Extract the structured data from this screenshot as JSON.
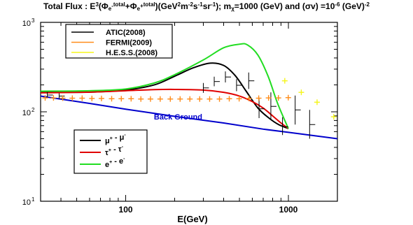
{
  "title": {
    "prefix": "Total Flux : E",
    "e_exp": "3",
    "open": "(Φ",
    "sub1": "e",
    "sub1_sup": "-",
    "sup1": "total",
    "plus": "+Φ",
    "sub2": "e",
    "sub2_sup": "+",
    "sup2": "total",
    "units_a": ")(GeV",
    "units_a_exp": "2",
    "units_b": "m",
    "units_b_exp": "-2",
    "units_c": "s",
    "units_c_exp": "-1",
    "units_d": "sr",
    "units_d_exp": "-1",
    "units_end": "); m",
    "mass_sub": "χ",
    "mass_text": "=1000 (GeV) and  (σv)  =10",
    "sv_exp": "-6",
    "tail": " (GeV)",
    "tail_exp": "-2"
  },
  "chart_data": {
    "type": "line",
    "xscale": "log",
    "yscale": "log",
    "xlim": [
      30,
      2000
    ],
    "ylim": [
      10,
      1000
    ],
    "xlabel": "E(GeV)",
    "ylabel": "",
    "x_ticks": [
      {
        "value": 100,
        "label": "100"
      },
      {
        "value": 1000,
        "label": "1000"
      }
    ],
    "y_ticks": [
      {
        "value": 10,
        "label": "10",
        "exp": "1"
      },
      {
        "value": 100,
        "label": "10",
        "exp": "2"
      },
      {
        "value": 1000,
        "label": "10",
        "exp": "3"
      }
    ],
    "annotations": [
      {
        "text": "Back Ground",
        "x": 210,
        "y": 82,
        "color": "#0000cc"
      }
    ],
    "data_legend": {
      "placement": "top-left",
      "entries": [
        {
          "label": "ATIC(2008)",
          "color": "#000000"
        },
        {
          "label": "FERMI(2009)",
          "color": "#ff8c1a"
        },
        {
          "label": "H.E.S.S.(2008)",
          "color": "#f5f51a"
        }
      ]
    },
    "model_legend": {
      "placement": "bottom-left",
      "entries": [
        {
          "base": "μ",
          "sup1": "+",
          "sep": " - ",
          "base2": "μ",
          "sup2": "-",
          "color": "#000000"
        },
        {
          "base": "τ",
          "sup1": "+",
          "sep": " - ",
          "base2": "τ",
          "sup2": "-",
          "color": "#e00000"
        },
        {
          "base": "e",
          "sup1": "+",
          "sep": " - ",
          "base2": "e",
          "sup2": "-",
          "color": "#22dd22"
        }
      ]
    },
    "series": [
      {
        "name": "Back Ground",
        "color": "#0000cc",
        "x": [
          30,
          60,
          100,
          200,
          400,
          700,
          1000,
          2000
        ],
        "y": [
          150,
          124,
          107,
          89,
          75,
          64,
          59,
          50
        ]
      },
      {
        "name": "μ+ - μ-",
        "color": "#000000",
        "x": [
          30,
          60,
          100,
          150,
          200,
          260,
          330,
          400,
          470,
          550,
          650,
          760,
          870,
          1000
        ],
        "y": [
          165,
          166,
          175,
          200,
          250,
          310,
          350,
          330,
          255,
          170,
          110,
          85,
          72,
          65
        ]
      },
      {
        "name": "τ+ - τ-",
        "color": "#e00000",
        "x": [
          30,
          60,
          100,
          150,
          200,
          300,
          400,
          500,
          600,
          700,
          800,
          900,
          1000
        ],
        "y": [
          163,
          166,
          172,
          177,
          178,
          175,
          165,
          150,
          130,
          110,
          90,
          75,
          65
        ]
      },
      {
        "name": "e+ - e-",
        "color": "#22dd22",
        "x": [
          30,
          60,
          100,
          150,
          200,
          300,
          400,
          500,
          560,
          650,
          750,
          850,
          950,
          1000
        ],
        "y": [
          170,
          172,
          180,
          210,
          260,
          380,
          520,
          570,
          560,
          430,
          250,
          130,
          80,
          65
        ]
      }
    ],
    "data_points": [
      {
        "name": "ATIC(2008)",
        "color": "#000000",
        "marker": "error-cross",
        "points": [
          {
            "x": 33,
            "y": 154,
            "lo": 143,
            "hi": 167
          },
          {
            "x": 39,
            "y": 150,
            "lo": 140,
            "hi": 161
          },
          {
            "x": 300,
            "y": 185,
            "lo": 163,
            "hi": 210
          },
          {
            "x": 350,
            "y": 218,
            "lo": 193,
            "hi": 247
          },
          {
            "x": 410,
            "y": 245,
            "lo": 213,
            "hi": 283
          },
          {
            "x": 480,
            "y": 198,
            "lo": 170,
            "hi": 232
          },
          {
            "x": 570,
            "y": 222,
            "lo": 180,
            "hi": 275
          },
          {
            "x": 660,
            "y": 108,
            "lo": 85,
            "hi": 140
          },
          {
            "x": 780,
            "y": 115,
            "lo": 82,
            "hi": 165
          },
          {
            "x": 920,
            "y": 68,
            "lo": 55,
            "hi": 87
          },
          {
            "x": 1100,
            "y": 105,
            "lo": 72,
            "hi": 152
          },
          {
            "x": 1350,
            "y": 72,
            "lo": 50,
            "hi": 105
          }
        ]
      },
      {
        "name": "FERMI(2009)",
        "color": "#ff8c1a",
        "marker": "plus",
        "points": [
          {
            "x": 32,
            "y": 143
          },
          {
            "x": 36,
            "y": 143
          },
          {
            "x": 41,
            "y": 142
          },
          {
            "x": 47,
            "y": 142
          },
          {
            "x": 54,
            "y": 142
          },
          {
            "x": 62,
            "y": 141
          },
          {
            "x": 71,
            "y": 141
          },
          {
            "x": 82,
            "y": 140
          },
          {
            "x": 94,
            "y": 140
          },
          {
            "x": 108,
            "y": 140
          },
          {
            "x": 124,
            "y": 139
          },
          {
            "x": 142,
            "y": 139
          },
          {
            "x": 163,
            "y": 139
          },
          {
            "x": 188,
            "y": 139
          },
          {
            "x": 216,
            "y": 139
          },
          {
            "x": 248,
            "y": 139
          },
          {
            "x": 285,
            "y": 139
          },
          {
            "x": 328,
            "y": 139
          },
          {
            "x": 377,
            "y": 139
          },
          {
            "x": 433,
            "y": 140
          },
          {
            "x": 498,
            "y": 140
          },
          {
            "x": 572,
            "y": 141
          },
          {
            "x": 657,
            "y": 142
          },
          {
            "x": 755,
            "y": 143
          },
          {
            "x": 868,
            "y": 143
          },
          {
            "x": 998,
            "y": 144
          }
        ]
      },
      {
        "name": "H.E.S.S.(2008)",
        "color": "#f5f51a",
        "marker": "plus",
        "points": [
          {
            "x": 950,
            "y": 222
          },
          {
            "x": 1200,
            "y": 165
          },
          {
            "x": 1500,
            "y": 128
          },
          {
            "x": 1900,
            "y": 88
          }
        ]
      }
    ]
  }
}
